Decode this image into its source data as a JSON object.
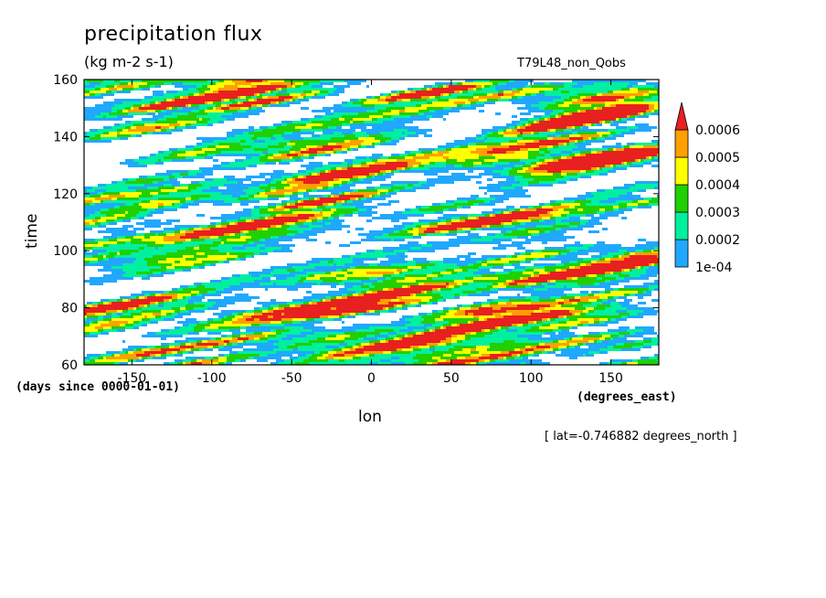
{
  "chart_data": {
    "type": "heatmap",
    "title": "precipitation flux",
    "units": "(kg m-2 s-1)",
    "dataset_label": "T79L48_non_Qobs",
    "xlabel": "lon",
    "xunits": "(degrees_east)",
    "ylabel": "time",
    "yunits": "(days since 0000-01-01)",
    "xlim": [
      -180,
      180
    ],
    "ylim": [
      60,
      160
    ],
    "xticks": [
      -150,
      -100,
      -50,
      0,
      50,
      100,
      150
    ],
    "yticks": [
      60,
      80,
      100,
      120,
      140,
      160
    ],
    "lat_note": "[ lat=-0.746882 degrees_north ]",
    "levels": [
      0.0001,
      0.0002,
      0.0003,
      0.0004,
      0.0005,
      0.0006
    ],
    "level_labels": [
      "1e-04",
      "0.0002",
      "0.0003",
      "0.0004",
      "0.0005",
      "0.0006"
    ],
    "colors": [
      "#20a8ff",
      "#00f0a0",
      "#20d000",
      "#ffff00",
      "#ffa000",
      "#e82020"
    ]
  }
}
